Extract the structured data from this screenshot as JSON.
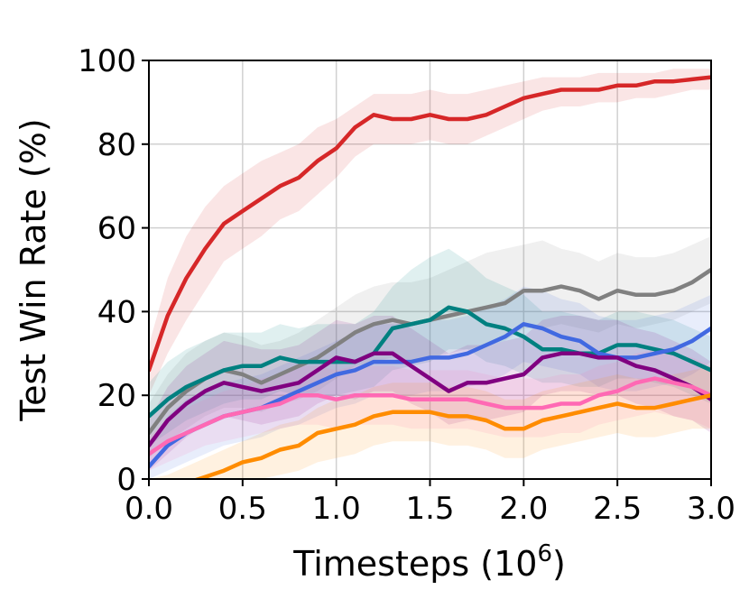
{
  "chart_data": {
    "type": "line",
    "xlabel": "Timesteps (10",
    "xlabel_sup": "6",
    "xlabel_end": ")",
    "ylabel": "Test Win Rate (%)",
    "xlim": [
      0,
      3.0
    ],
    "ylim": [
      0,
      100
    ],
    "xticks": [
      0.0,
      0.5,
      1.0,
      1.5,
      2.0,
      2.5,
      3.0
    ],
    "xtick_labels": [
      "0.0",
      "0.5",
      "1.0",
      "1.5",
      "2.0",
      "2.5",
      "3.0"
    ],
    "yticks": [
      0,
      20,
      40,
      60,
      80,
      100
    ],
    "ytick_labels": [
      "0",
      "20",
      "40",
      "60",
      "80",
      "100"
    ],
    "grid": true,
    "series": [
      {
        "color": "#d62728",
        "x": [
          0.0,
          0.1,
          0.2,
          0.3,
          0.4,
          0.5,
          0.6,
          0.7,
          0.8,
          0.9,
          1.0,
          1.1,
          1.2,
          1.3,
          1.4,
          1.5,
          1.6,
          1.7,
          1.8,
          1.9,
          2.0,
          2.1,
          2.2,
          2.3,
          2.4,
          2.5,
          2.6,
          2.7,
          2.8,
          2.9,
          3.0
        ],
        "y": [
          26,
          39,
          48,
          55,
          61,
          64,
          67,
          70,
          72,
          76,
          79,
          84,
          87,
          86,
          86,
          87,
          86,
          86,
          87,
          89,
          91,
          92,
          93,
          93,
          93,
          94,
          94,
          95,
          95,
          95.5,
          96
        ],
        "lower": [
          20,
          30,
          38,
          45,
          52,
          55,
          58,
          62,
          64,
          68,
          72,
          77,
          80,
          80,
          80,
          81,
          80,
          80,
          82,
          84,
          86,
          88,
          89,
          89,
          90,
          90,
          91,
          91,
          92,
          93,
          93
        ],
        "upper": [
          32,
          48,
          58,
          65,
          70,
          73,
          76,
          78,
          80,
          84,
          86,
          89,
          92,
          92,
          92,
          93,
          92,
          92,
          93,
          94,
          95,
          96,
          96,
          96,
          97,
          97,
          97,
          97,
          98,
          98,
          98
        ]
      },
      {
        "color": "#808080",
        "x": [
          0.0,
          0.1,
          0.2,
          0.3,
          0.4,
          0.5,
          0.6,
          0.7,
          0.8,
          0.9,
          1.0,
          1.1,
          1.2,
          1.3,
          1.4,
          1.5,
          1.6,
          1.7,
          1.8,
          1.9,
          2.0,
          2.1,
          2.2,
          2.3,
          2.4,
          2.5,
          2.6,
          2.7,
          2.8,
          2.9,
          3.0
        ],
        "y": [
          11,
          17,
          21,
          24,
          26,
          25,
          23,
          25,
          27,
          29,
          32,
          35,
          37,
          38,
          37,
          38,
          39,
          40,
          41,
          42,
          45,
          45,
          46,
          45,
          43,
          45,
          44,
          44,
          45,
          47,
          50
        ],
        "lower": [
          5,
          9,
          12,
          15,
          17,
          17,
          16,
          18,
          19,
          21,
          24,
          27,
          28,
          29,
          28,
          29,
          30,
          31,
          32,
          33,
          36,
          36,
          37,
          36,
          35,
          37,
          36,
          37,
          38,
          40,
          42
        ],
        "upper": [
          18,
          25,
          30,
          33,
          35,
          34,
          32,
          33,
          35,
          38,
          41,
          44,
          46,
          47,
          47,
          48,
          50,
          52,
          54,
          55,
          56,
          57,
          55,
          54,
          52,
          54,
          53,
          53,
          54,
          56,
          58
        ]
      },
      {
        "color": "#008080",
        "x": [
          0.0,
          0.1,
          0.2,
          0.3,
          0.4,
          0.5,
          0.6,
          0.7,
          0.8,
          0.9,
          1.0,
          1.1,
          1.2,
          1.3,
          1.4,
          1.5,
          1.6,
          1.7,
          1.8,
          1.9,
          2.0,
          2.1,
          2.2,
          2.3,
          2.4,
          2.5,
          2.6,
          2.7,
          2.8,
          2.9,
          3.0
        ],
        "y": [
          15,
          19,
          22,
          24,
          26,
          27,
          27,
          29,
          28,
          28,
          28,
          28,
          30,
          36,
          37,
          38,
          41,
          40,
          37,
          36,
          34,
          31,
          31,
          30,
          30,
          32,
          32,
          31,
          30,
          28,
          26
        ],
        "lower": [
          8,
          11,
          14,
          16,
          18,
          19,
          19,
          21,
          20,
          20,
          20,
          21,
          22,
          26,
          27,
          28,
          31,
          31,
          28,
          27,
          25,
          23,
          23,
          22,
          22,
          24,
          24,
          23,
          22,
          20,
          18
        ],
        "upper": [
          23,
          28,
          31,
          33,
          35,
          35,
          35,
          37,
          36,
          37,
          37,
          37,
          40,
          46,
          50,
          53,
          55,
          52,
          48,
          46,
          44,
          40,
          40,
          39,
          38,
          40,
          40,
          39,
          38,
          36,
          34
        ]
      },
      {
        "color": "#4169e1",
        "x": [
          0.0,
          0.1,
          0.2,
          0.3,
          0.4,
          0.5,
          0.6,
          0.7,
          0.8,
          0.9,
          1.0,
          1.1,
          1.2,
          1.3,
          1.4,
          1.5,
          1.6,
          1.7,
          1.8,
          1.9,
          2.0,
          2.1,
          2.2,
          2.3,
          2.4,
          2.5,
          2.6,
          2.7,
          2.8,
          2.9,
          3.0
        ],
        "y": [
          3,
          8,
          11,
          13,
          15,
          16,
          17,
          19,
          21,
          23,
          25,
          26,
          28,
          28,
          28,
          29,
          29,
          30,
          32,
          34,
          37,
          36,
          34,
          33,
          30,
          29,
          29,
          30,
          31,
          33,
          36
        ],
        "lower": [
          0,
          2,
          4,
          6,
          8,
          9,
          10,
          12,
          13,
          15,
          17,
          18,
          20,
          20,
          20,
          21,
          21,
          22,
          23,
          25,
          28,
          27,
          26,
          25,
          22,
          21,
          21,
          22,
          23,
          25,
          28
        ],
        "upper": [
          8,
          15,
          19,
          21,
          23,
          24,
          25,
          27,
          29,
          31,
          33,
          35,
          37,
          37,
          37,
          38,
          38,
          39,
          41,
          43,
          46,
          45,
          43,
          42,
          39,
          38,
          38,
          39,
          40,
          42,
          44
        ]
      },
      {
        "color": "#800080",
        "x": [
          0.0,
          0.1,
          0.2,
          0.3,
          0.4,
          0.5,
          0.6,
          0.7,
          0.8,
          0.9,
          1.0,
          1.1,
          1.2,
          1.3,
          1.4,
          1.5,
          1.6,
          1.7,
          1.8,
          1.9,
          2.0,
          2.1,
          2.2,
          2.3,
          2.4,
          2.5,
          2.6,
          2.7,
          2.8,
          2.9,
          3.0
        ],
        "y": [
          8,
          14,
          18,
          21,
          23,
          22,
          21,
          22,
          23,
          26,
          29,
          28,
          30,
          30,
          27,
          24,
          21,
          23,
          23,
          24,
          25,
          29,
          30,
          30,
          29,
          29,
          27,
          26,
          24,
          22,
          19
        ],
        "lower": [
          2,
          6,
          10,
          13,
          15,
          14,
          13,
          14,
          15,
          18,
          20,
          19,
          21,
          21,
          18,
          16,
          13,
          14,
          14,
          15,
          16,
          20,
          21,
          21,
          20,
          20,
          18,
          17,
          15,
          14,
          11
        ],
        "upper": [
          14,
          22,
          27,
          30,
          33,
          32,
          31,
          31,
          32,
          35,
          38,
          37,
          39,
          39,
          36,
          33,
          30,
          32,
          32,
          33,
          34,
          38,
          39,
          39,
          38,
          38,
          36,
          35,
          33,
          31,
          28
        ]
      },
      {
        "color": "#ff69b4",
        "x": [
          0.0,
          0.1,
          0.2,
          0.3,
          0.4,
          0.5,
          0.6,
          0.7,
          0.8,
          0.9,
          1.0,
          1.1,
          1.2,
          1.3,
          1.4,
          1.5,
          1.6,
          1.7,
          1.8,
          1.9,
          2.0,
          2.1,
          2.2,
          2.3,
          2.4,
          2.5,
          2.6,
          2.7,
          2.8,
          2.9,
          3.0
        ],
        "y": [
          6,
          9,
          11,
          13,
          15,
          16,
          17,
          18,
          20,
          20,
          19,
          20,
          20,
          20,
          19,
          19,
          19,
          19,
          18,
          17,
          17,
          17,
          18,
          18,
          20,
          21,
          23,
          24,
          23,
          22,
          20
        ],
        "lower": [
          2,
          4,
          6,
          8,
          9,
          10,
          11,
          12,
          13,
          13,
          12,
          13,
          13,
          13,
          12,
          12,
          12,
          12,
          11,
          10,
          10,
          10,
          11,
          11,
          13,
          14,
          15,
          16,
          15,
          14,
          12
        ],
        "upper": [
          10,
          14,
          17,
          19,
          21,
          22,
          24,
          25,
          27,
          27,
          26,
          27,
          27,
          27,
          26,
          26,
          26,
          26,
          25,
          24,
          24,
          24,
          25,
          25,
          27,
          28,
          30,
          31,
          30,
          29,
          27
        ]
      },
      {
        "color": "#ff8c00",
        "x": [
          0.0,
          0.1,
          0.2,
          0.3,
          0.4,
          0.5,
          0.6,
          0.7,
          0.8,
          0.9,
          1.0,
          1.1,
          1.2,
          1.3,
          1.4,
          1.5,
          1.6,
          1.7,
          1.8,
          1.9,
          2.0,
          2.1,
          2.2,
          2.3,
          2.4,
          2.5,
          2.6,
          2.7,
          2.8,
          2.9,
          3.0
        ],
        "y": [
          -4,
          -3,
          -1,
          0.5,
          2,
          4,
          5,
          7,
          8,
          11,
          12,
          13,
          15,
          16,
          16,
          16,
          15,
          15,
          14,
          12,
          12,
          14,
          15,
          16,
          17,
          18,
          17,
          17,
          18,
          19,
          20
        ],
        "lower": [
          -8,
          -7,
          -5,
          -4,
          -3,
          -1,
          0,
          1,
          2,
          4,
          5,
          6,
          8,
          9,
          9,
          9,
          8,
          8,
          7,
          5,
          5,
          7,
          8,
          9,
          10,
          11,
          10,
          10,
          11,
          12,
          12
        ],
        "upper": [
          0,
          1,
          3,
          5,
          7,
          9,
          11,
          13,
          14,
          17,
          19,
          20,
          22,
          23,
          23,
          23,
          22,
          22,
          21,
          19,
          19,
          21,
          22,
          23,
          24,
          25,
          24,
          24,
          25,
          26,
          27
        ]
      }
    ]
  }
}
